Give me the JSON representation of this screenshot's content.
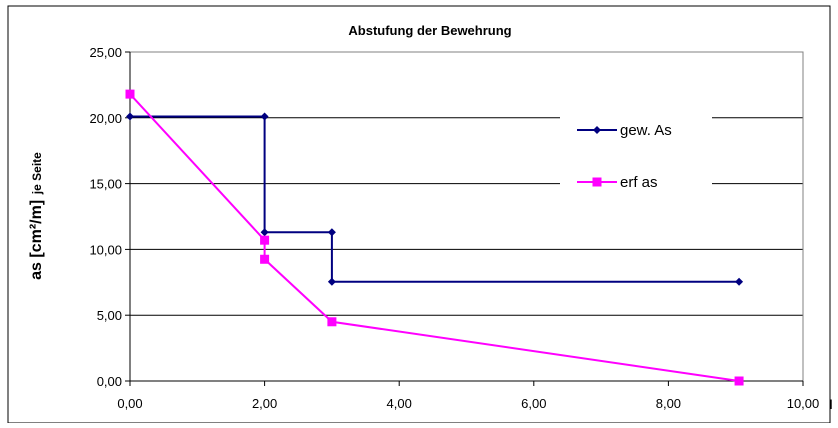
{
  "chart_data": {
    "type": "line",
    "title": "Abstufung der Bewehrung",
    "ylabel_main": "as [cm²/m]",
    "ylabel_suffix": "je Seite",
    "xlabel": "l",
    "xlim": [
      0,
      10
    ],
    "ylim": [
      0,
      25
    ],
    "x_ticks": [
      "0,00",
      "2,00",
      "4,00",
      "6,00",
      "8,00",
      "10,00"
    ],
    "y_ticks": [
      "0,00",
      "5,00",
      "10,00",
      "15,00",
      "20,00",
      "25,00"
    ],
    "grid": "horizontal",
    "legend_position": "right",
    "series": [
      {
        "name": "gew. As",
        "color": "#000080",
        "marker": "diamond",
        "x": [
          0.0,
          2.0,
          2.0,
          3.0,
          3.0,
          9.05
        ],
        "y": [
          20.1,
          20.1,
          11.3,
          11.3,
          7.54,
          7.54
        ]
      },
      {
        "name": "erf as",
        "color": "#ff00ff",
        "marker": "square",
        "x": [
          0.0,
          2.0,
          2.0,
          3.0,
          9.05
        ],
        "y": [
          21.8,
          10.7,
          9.25,
          4.5,
          0.0
        ]
      }
    ]
  }
}
